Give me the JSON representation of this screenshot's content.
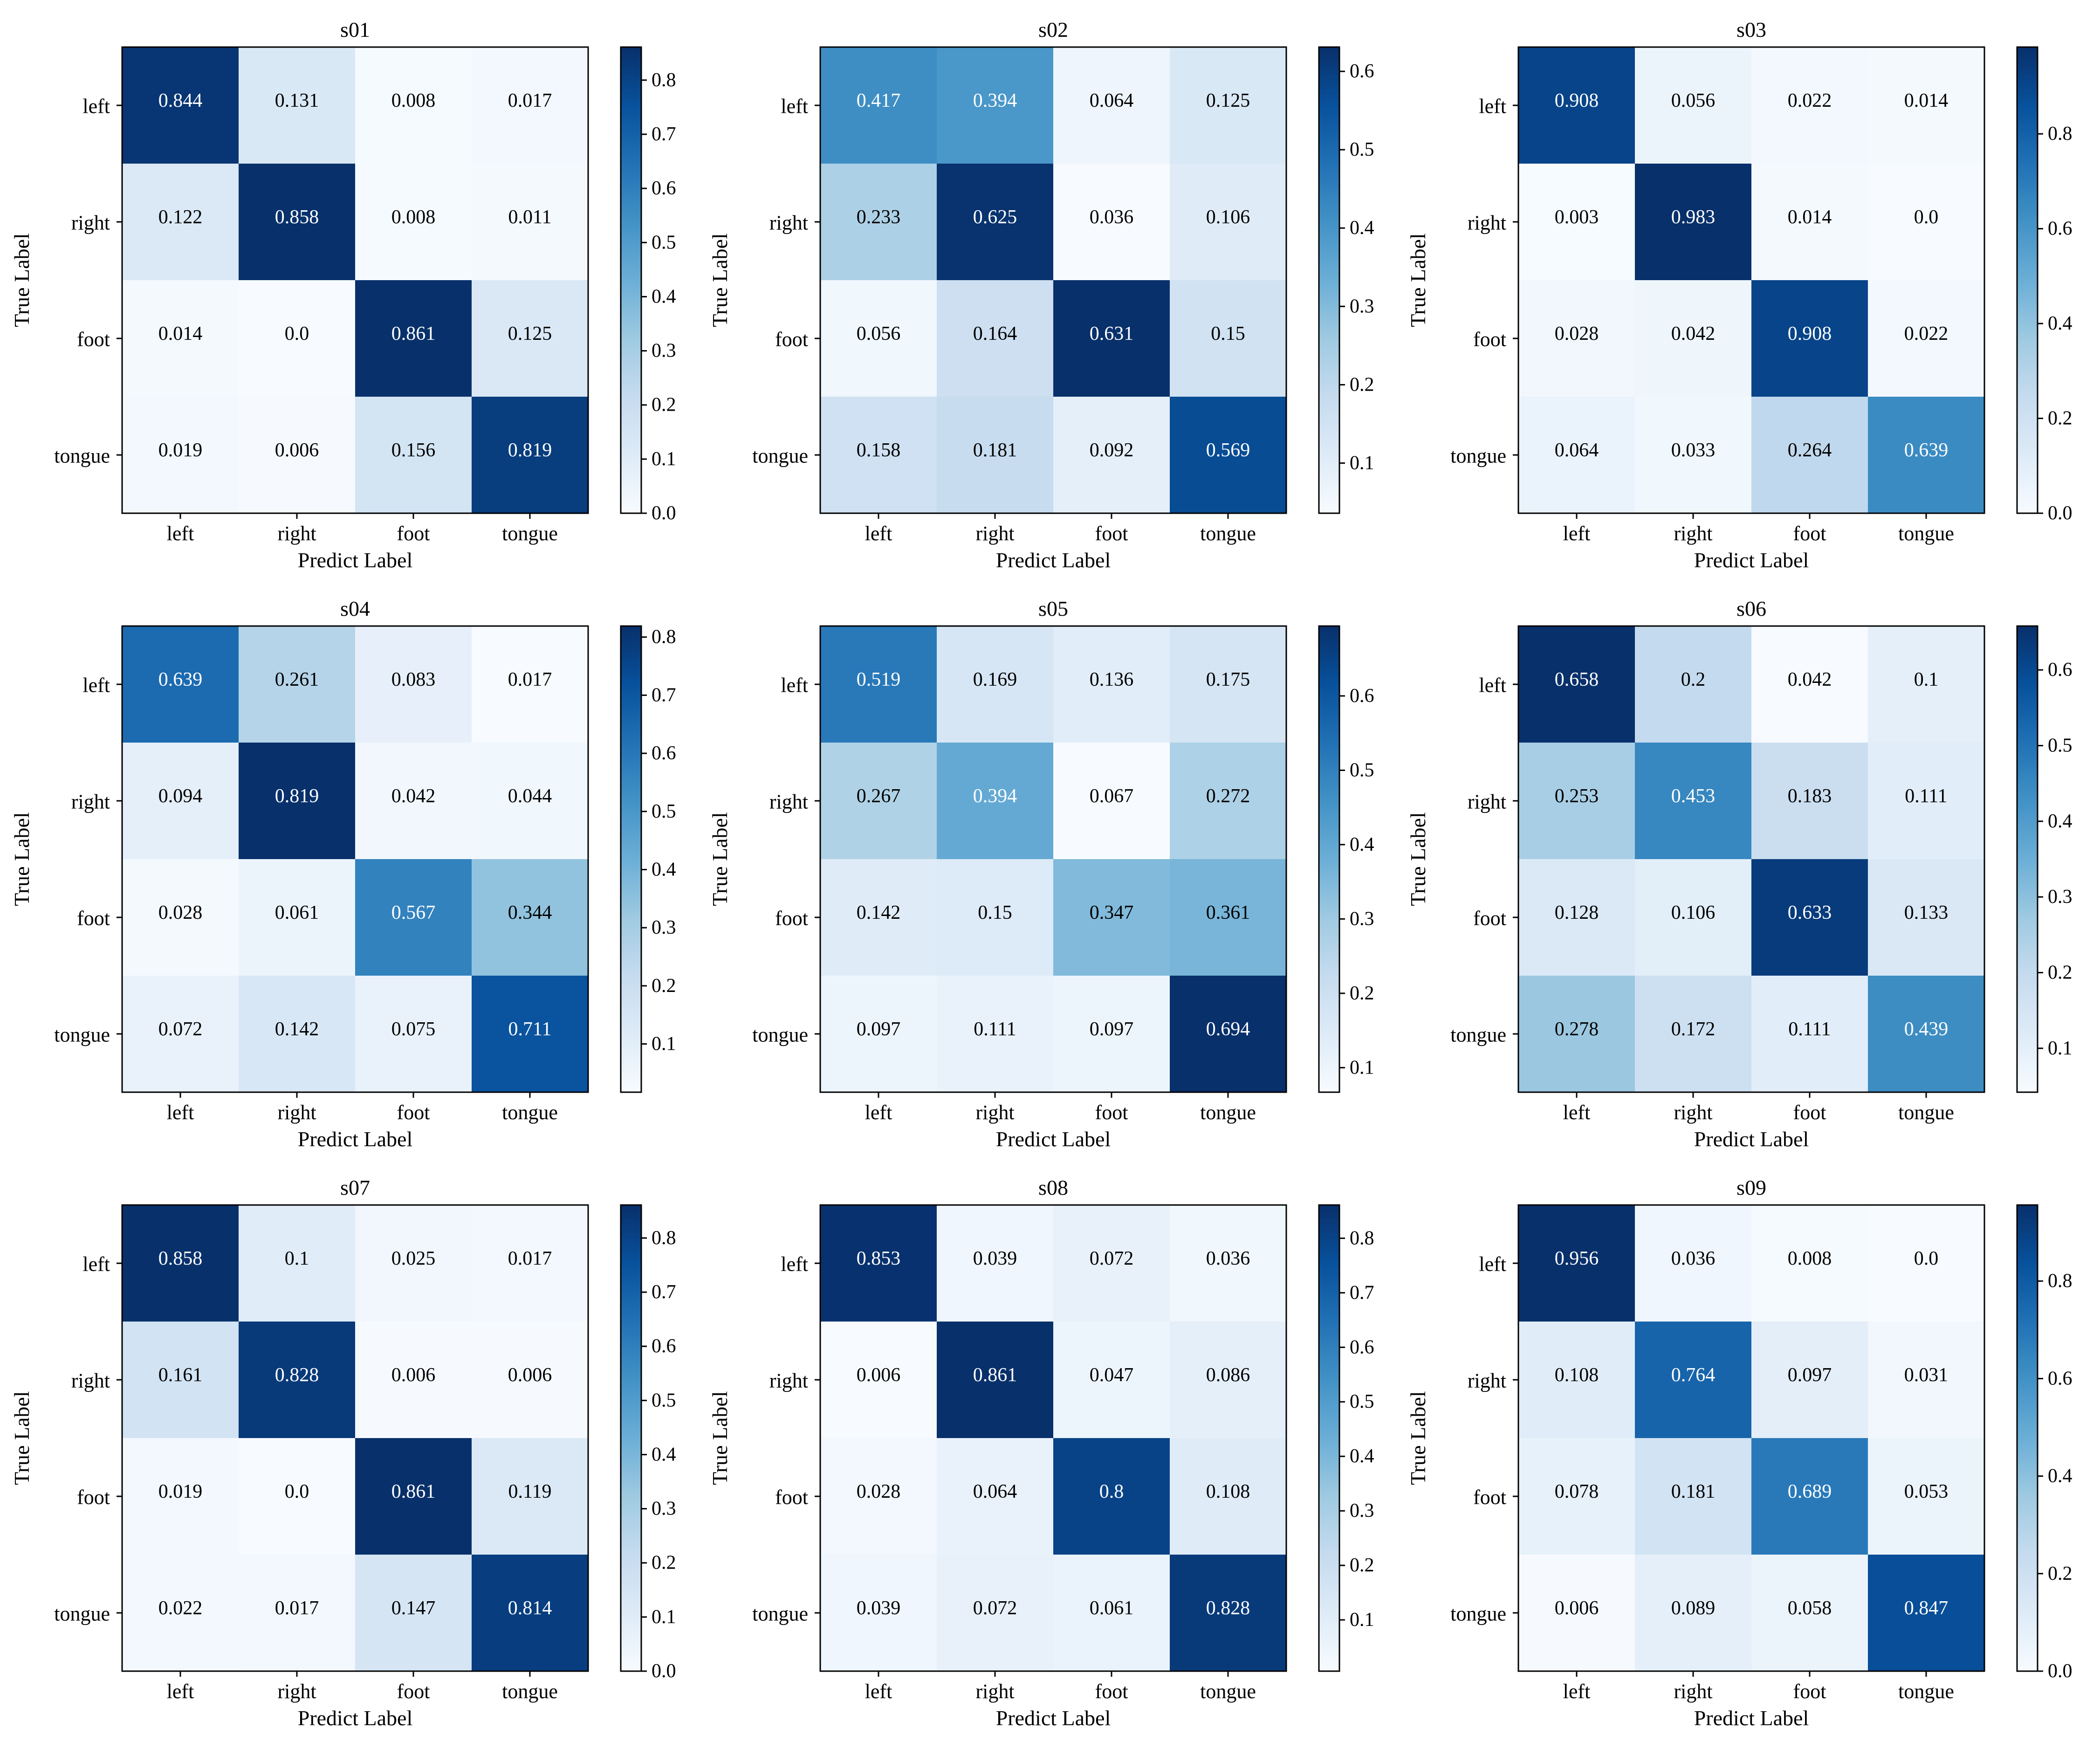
{
  "chart_data": [
    {
      "type": "heatmap",
      "title": "s01",
      "xlabel": "Predict Label",
      "ylabel": "True Label",
      "row_labels": [
        "left",
        "right",
        "foot",
        "tongue"
      ],
      "col_labels": [
        "left",
        "right",
        "foot",
        "tongue"
      ],
      "values": [
        [
          "0.844",
          "0.131",
          "0.008",
          "0.017"
        ],
        [
          "0.122",
          "0.858",
          "0.008",
          "0.011"
        ],
        [
          "0.014",
          "0.0",
          "0.861",
          "0.125"
        ],
        [
          "0.019",
          "0.006",
          "0.156",
          "0.819"
        ]
      ],
      "colorbar": {
        "vmin": 0.0,
        "vmax": 0.861,
        "ticks": [
          "0.0",
          "0.1",
          "0.2",
          "0.3",
          "0.4",
          "0.5",
          "0.6",
          "0.7",
          "0.8"
        ]
      }
    },
    {
      "type": "heatmap",
      "title": "s02",
      "xlabel": "Predict Label",
      "ylabel": "True Label",
      "row_labels": [
        "left",
        "right",
        "foot",
        "tongue"
      ],
      "col_labels": [
        "left",
        "right",
        "foot",
        "tongue"
      ],
      "values": [
        [
          "0.417",
          "0.394",
          "0.064",
          "0.125"
        ],
        [
          "0.233",
          "0.625",
          "0.036",
          "0.106"
        ],
        [
          "0.056",
          "0.164",
          "0.631",
          "0.15"
        ],
        [
          "0.158",
          "0.181",
          "0.092",
          "0.569"
        ]
      ],
      "colorbar": {
        "vmin": 0.036,
        "vmax": 0.631,
        "ticks": [
          "0.1",
          "0.2",
          "0.3",
          "0.4",
          "0.5",
          "0.6"
        ]
      }
    },
    {
      "type": "heatmap",
      "title": "s03",
      "xlabel": "Predict Label",
      "ylabel": "True Label",
      "row_labels": [
        "left",
        "right",
        "foot",
        "tongue"
      ],
      "col_labels": [
        "left",
        "right",
        "foot",
        "tongue"
      ],
      "values": [
        [
          "0.908",
          "0.056",
          "0.022",
          "0.014"
        ],
        [
          "0.003",
          "0.983",
          "0.014",
          "0.0"
        ],
        [
          "0.028",
          "0.042",
          "0.908",
          "0.022"
        ],
        [
          "0.064",
          "0.033",
          "0.264",
          "0.639"
        ]
      ],
      "colorbar": {
        "vmin": 0.0,
        "vmax": 0.983,
        "ticks": [
          "0.0",
          "0.2",
          "0.4",
          "0.6",
          "0.8"
        ]
      }
    },
    {
      "type": "heatmap",
      "title": "s04",
      "xlabel": "Predict Label",
      "ylabel": "True Label",
      "row_labels": [
        "left",
        "right",
        "foot",
        "tongue"
      ],
      "col_labels": [
        "left",
        "right",
        "foot",
        "tongue"
      ],
      "values": [
        [
          "0.639",
          "0.261",
          "0.083",
          "0.017"
        ],
        [
          "0.094",
          "0.819",
          "0.042",
          "0.044"
        ],
        [
          "0.028",
          "0.061",
          "0.567",
          "0.344"
        ],
        [
          "0.072",
          "0.142",
          "0.075",
          "0.711"
        ]
      ],
      "colorbar": {
        "vmin": 0.017,
        "vmax": 0.819,
        "ticks": [
          "0.1",
          "0.2",
          "0.3",
          "0.4",
          "0.5",
          "0.6",
          "0.7",
          "0.8"
        ]
      }
    },
    {
      "type": "heatmap",
      "title": "s05",
      "xlabel": "Predict Label",
      "ylabel": "True Label",
      "row_labels": [
        "left",
        "right",
        "foot",
        "tongue"
      ],
      "col_labels": [
        "left",
        "right",
        "foot",
        "tongue"
      ],
      "values": [
        [
          "0.519",
          "0.169",
          "0.136",
          "0.175"
        ],
        [
          "0.267",
          "0.394",
          "0.067",
          "0.272"
        ],
        [
          "0.142",
          "0.15",
          "0.347",
          "0.361"
        ],
        [
          "0.097",
          "0.111",
          "0.097",
          "0.694"
        ]
      ],
      "colorbar": {
        "vmin": 0.067,
        "vmax": 0.694,
        "ticks": [
          "0.1",
          "0.2",
          "0.3",
          "0.4",
          "0.5",
          "0.6"
        ]
      }
    },
    {
      "type": "heatmap",
      "title": "s06",
      "xlabel": "Predict Label",
      "ylabel": "True Label",
      "row_labels": [
        "left",
        "right",
        "foot",
        "tongue"
      ],
      "col_labels": [
        "left",
        "right",
        "foot",
        "tongue"
      ],
      "values": [
        [
          "0.658",
          "0.2",
          "0.042",
          "0.1"
        ],
        [
          "0.253",
          "0.453",
          "0.183",
          "0.111"
        ],
        [
          "0.128",
          "0.106",
          "0.633",
          "0.133"
        ],
        [
          "0.278",
          "0.172",
          "0.111",
          "0.439"
        ]
      ],
      "colorbar": {
        "vmin": 0.042,
        "vmax": 0.658,
        "ticks": [
          "0.1",
          "0.2",
          "0.3",
          "0.4",
          "0.5",
          "0.6"
        ]
      }
    },
    {
      "type": "heatmap",
      "title": "s07",
      "xlabel": "Predict Label",
      "ylabel": "True Label",
      "row_labels": [
        "left",
        "right",
        "foot",
        "tongue"
      ],
      "col_labels": [
        "left",
        "right",
        "foot",
        "tongue"
      ],
      "values": [
        [
          "0.858",
          "0.1",
          "0.025",
          "0.017"
        ],
        [
          "0.161",
          "0.828",
          "0.006",
          "0.006"
        ],
        [
          "0.019",
          "0.0",
          "0.861",
          "0.119"
        ],
        [
          "0.022",
          "0.017",
          "0.147",
          "0.814"
        ]
      ],
      "colorbar": {
        "vmin": 0.0,
        "vmax": 0.861,
        "ticks": [
          "0.0",
          "0.1",
          "0.2",
          "0.3",
          "0.4",
          "0.5",
          "0.6",
          "0.7",
          "0.8"
        ]
      }
    },
    {
      "type": "heatmap",
      "title": "s08",
      "xlabel": "Predict Label",
      "ylabel": "True Label",
      "row_labels": [
        "left",
        "right",
        "foot",
        "tongue"
      ],
      "col_labels": [
        "left",
        "right",
        "foot",
        "tongue"
      ],
      "values": [
        [
          "0.853",
          "0.039",
          "0.072",
          "0.036"
        ],
        [
          "0.006",
          "0.861",
          "0.047",
          "0.086"
        ],
        [
          "0.028",
          "0.064",
          "0.8",
          "0.108"
        ],
        [
          "0.039",
          "0.072",
          "0.061",
          "0.828"
        ]
      ],
      "colorbar": {
        "vmin": 0.006,
        "vmax": 0.861,
        "ticks": [
          "0.1",
          "0.2",
          "0.3",
          "0.4",
          "0.5",
          "0.6",
          "0.7",
          "0.8"
        ]
      }
    },
    {
      "type": "heatmap",
      "title": "s09",
      "xlabel": "Predict Label",
      "ylabel": "True Label",
      "row_labels": [
        "left",
        "right",
        "foot",
        "tongue"
      ],
      "col_labels": [
        "left",
        "right",
        "foot",
        "tongue"
      ],
      "values": [
        [
          "0.956",
          "0.036",
          "0.008",
          "0.0"
        ],
        [
          "0.108",
          "0.764",
          "0.097",
          "0.031"
        ],
        [
          "0.078",
          "0.181",
          "0.689",
          "0.053"
        ],
        [
          "0.006",
          "0.089",
          "0.058",
          "0.847"
        ]
      ],
      "colorbar": {
        "vmin": 0.0,
        "vmax": 0.956,
        "ticks": [
          "0.0",
          "0.2",
          "0.4",
          "0.6",
          "0.8"
        ]
      }
    }
  ],
  "colormap": {
    "name": "Blues",
    "light": "#f7fbff",
    "dark": "#08306b",
    "text_on_dark": "#ffffff",
    "text_on_light": "#000000"
  }
}
